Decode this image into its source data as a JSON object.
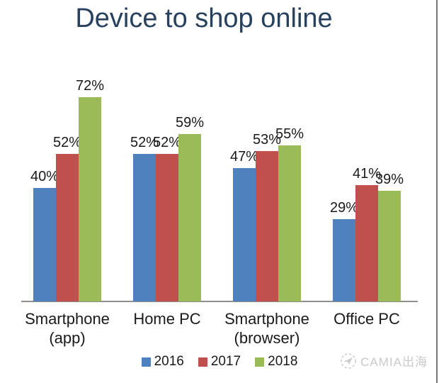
{
  "title": "Device to shop online",
  "chart_data": {
    "type": "bar",
    "title": "Device to shop online",
    "categories": [
      "Smartphone (app)",
      "Home PC",
      "Smartphone (browser)",
      "Office PC"
    ],
    "category_lines": [
      [
        "Smartphone",
        "(app)"
      ],
      [
        "Home PC"
      ],
      [
        "Smartphone",
        "(browser)"
      ],
      [
        "Office PC"
      ]
    ],
    "series": [
      {
        "name": "2016",
        "color": "#4E81BD",
        "values": [
          40,
          52,
          47,
          29
        ]
      },
      {
        "name": "2017",
        "color": "#C0504D",
        "values": [
          52,
          52,
          53,
          41
        ]
      },
      {
        "name": "2018",
        "color": "#9BBB59",
        "values": [
          72,
          59,
          55,
          39
        ]
      }
    ],
    "value_suffix": "%",
    "data_labels_shown": true,
    "xlabel": "",
    "ylabel": "",
    "ylim": [
      0,
      80
    ],
    "grid": false,
    "y_axis_shown": false,
    "legend_position": "bottom-center"
  },
  "colors": {
    "title": "#28415f",
    "data_label": "#1a1a1a",
    "category_label": "#1a1a1a",
    "axis_line": "#8f8f8f",
    "watermark": "#c9c9c9"
  },
  "watermark": {
    "text": "CAMIA出海",
    "logo": "paper-plane-in-dashed-circle-icon"
  }
}
